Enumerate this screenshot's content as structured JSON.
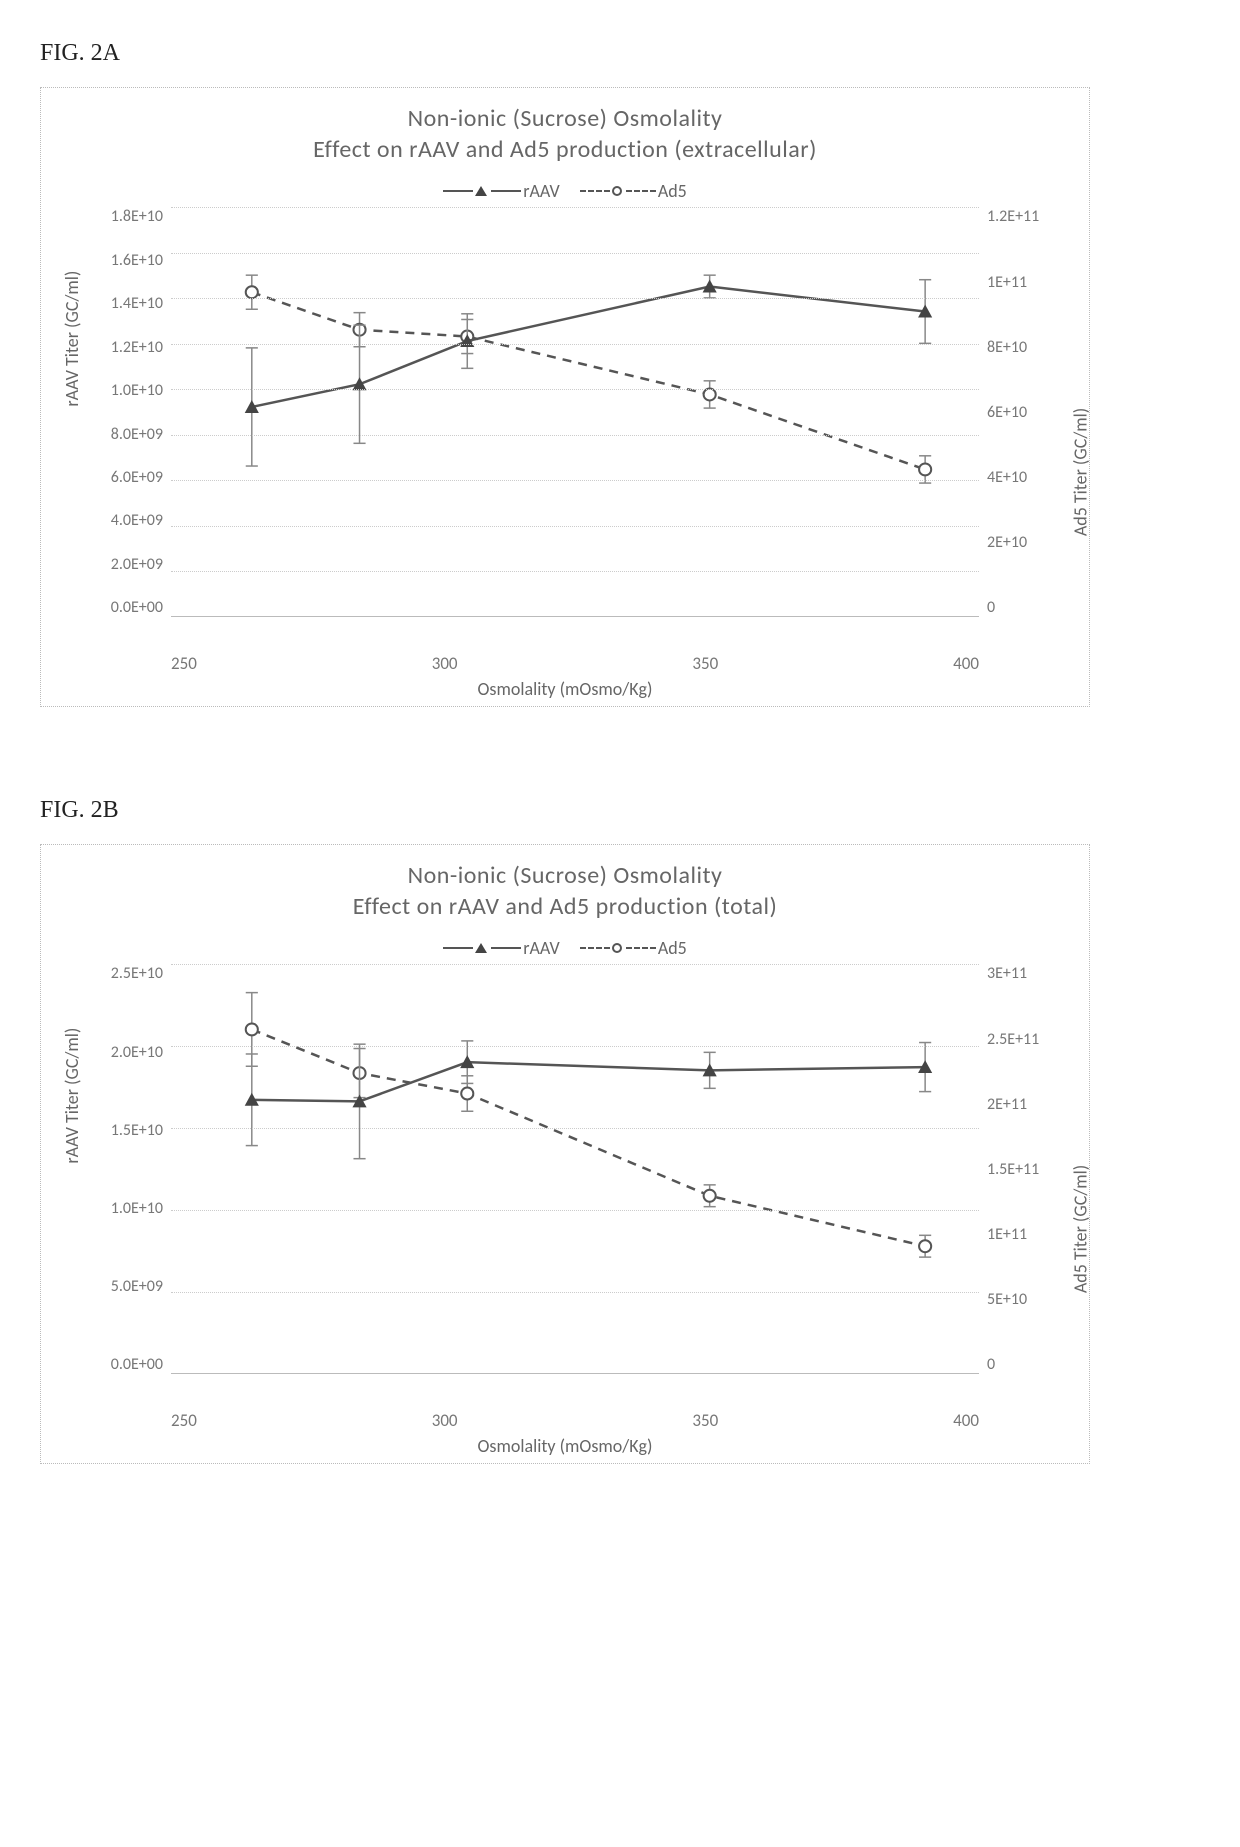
{
  "figA": {
    "label": "FIG. 2A",
    "type": "line",
    "title_line1": "Non-ionic (Sucrose) Osmolality",
    "title_line2": "Effect on rAAV and Ad5 production (extracellular)",
    "xlabel": "Osmolality (mOsmo/Kg)",
    "ylabel_left": "rAAV Titer (GC/ml)",
    "ylabel_right": "Ad5 Titer (GC/ml)",
    "xlim": [
      250,
      400
    ],
    "ylim_left": [
      0,
      18000000000.0
    ],
    "ylim_right": [
      0,
      120000000000.0
    ],
    "xticks": [
      "250",
      "300",
      "350",
      "400"
    ],
    "yticks_left": [
      "1.8E+10",
      "1.6E+10",
      "1.4E+10",
      "1.2E+10",
      "1.0E+10",
      "8.0E+09",
      "6.0E+09",
      "4.0E+09",
      "2.0E+09",
      "0.0E+00"
    ],
    "yticks_right": [
      "1.2E+11",
      "",
      "1E+11",
      "",
      "8E+10",
      "",
      "6E+10",
      "",
      "4E+10",
      "",
      "2E+10",
      "",
      "0"
    ],
    "grid_positions_pct": [
      0,
      11.1,
      22.2,
      33.3,
      44.4,
      55.6,
      66.7,
      77.8,
      88.9
    ],
    "legend": {
      "s1": "rAAV",
      "s2": "Ad5"
    },
    "series_rAAV": {
      "marker": "triangle",
      "line": "solid",
      "color": "#555555",
      "x": [
        265,
        285,
        305,
        350,
        390
      ],
      "y": [
        9200000000.0,
        10200000000.0,
        12100000000.0,
        14500000000.0,
        13400000000.0
      ],
      "yerr": [
        2600000000.0,
        2600000000.0,
        1200000000.0,
        500000000.0,
        1400000000.0
      ]
    },
    "series_Ad5": {
      "marker": "circle",
      "line": "dashed",
      "color": "#555555",
      "x": [
        265,
        285,
        305,
        350,
        390
      ],
      "y": [
        95000000000.0,
        84000000000.0,
        82000000000.0,
        65000000000.0,
        43000000000.0
      ],
      "yerr": [
        5000000000.0,
        5000000000.0,
        5000000000.0,
        4000000000.0,
        4000000000.0
      ]
    },
    "background_color": "#ffffff",
    "grid_color": "#cccccc",
    "font_family": "Calibri",
    "title_fontsize": 24,
    "label_fontsize": 18,
    "tick_fontsize": 16
  },
  "figB": {
    "label": "FIG. 2B",
    "type": "line",
    "title_line1": "Non-ionic (Sucrose) Osmolality",
    "title_line2": "Effect on rAAV and Ad5 production (total)",
    "xlabel": "Osmolality (mOsmo/Kg)",
    "ylabel_left": "rAAV Titer (GC/ml)",
    "ylabel_right": "Ad5 Titer (GC/ml)",
    "xlim": [
      250,
      400
    ],
    "ylim_left": [
      0,
      25000000000.0
    ],
    "ylim_right": [
      0,
      300000000000.0
    ],
    "xticks": [
      "250",
      "300",
      "350",
      "400"
    ],
    "yticks_left": [
      "2.5E+10",
      "2.0E+10",
      "1.5E+10",
      "1.0E+10",
      "5.0E+09",
      "0.0E+00"
    ],
    "yticks_right": [
      "3E+11",
      "2.5E+11",
      "2E+11",
      "1.5E+11",
      "1E+11",
      "5E+10",
      "0"
    ],
    "grid_positions_pct": [
      0,
      20,
      40,
      60,
      80
    ],
    "legend": {
      "s1": "rAAV",
      "s2": "Ad5"
    },
    "series_rAAV": {
      "marker": "triangle",
      "line": "solid",
      "color": "#555555",
      "x": [
        265,
        285,
        305,
        350,
        390
      ],
      "y": [
        16700000000.0,
        16600000000.0,
        19000000000.0,
        18500000000.0,
        18700000000.0
      ],
      "yerr": [
        2800000000.0,
        3500000000.0,
        1300000000.0,
        1100000000.0,
        1500000000.0
      ]
    },
    "series_Ad5": {
      "marker": "circle",
      "line": "dashed",
      "color": "#555555",
      "x": [
        265,
        285,
        305,
        350,
        390
      ],
      "y": [
        252000000000.0,
        220000000000.0,
        205000000000.0,
        130000000000.0,
        93000000000.0
      ],
      "yerr": [
        27000000000.0,
        18000000000.0,
        13000000000.0,
        8000000000.0,
        8000000000.0
      ]
    },
    "background_color": "#ffffff",
    "grid_color": "#cccccc",
    "font_family": "Calibri",
    "title_fontsize": 24,
    "label_fontsize": 18,
    "tick_fontsize": 16
  }
}
